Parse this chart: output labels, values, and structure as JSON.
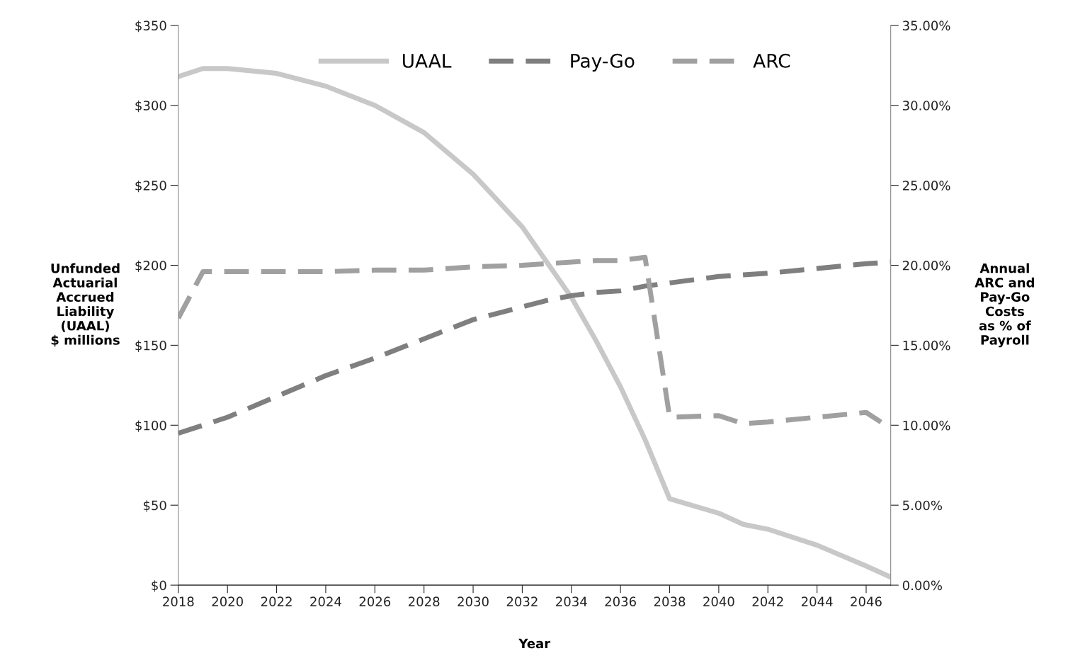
{
  "chart_data": {
    "type": "line",
    "xlabel": "Year",
    "ylabel": "Unfunded\nActuarial\nAccrued\nLiability\n(UAAL)\n$ millions",
    "y2label": "Annual\nARC and\nPay-Go\nCosts\nas % of\nPayroll",
    "x": [
      2018,
      2019,
      2020,
      2022,
      2024,
      2026,
      2028,
      2030,
      2032,
      2033,
      2034,
      2035,
      2036,
      2037,
      2038,
      2040,
      2041,
      2042,
      2044,
      2046,
      2047
    ],
    "series": [
      {
        "name": "UAAL",
        "color": "#c8c8c8",
        "line_style": "solid",
        "values": [
          318,
          323,
          323,
          320,
          312,
          300,
          283,
          257,
          224,
          202,
          180,
          153,
          124,
          91,
          54,
          45,
          38,
          35,
          25,
          12,
          5
        ]
      },
      {
        "name": "Pay-Go",
        "color": "#7f7f7f",
        "line_style": "dashed",
        "axis": "y2",
        "values": [
          9.5,
          10.0,
          10.5,
          11.8,
          13.1,
          14.2,
          15.4,
          16.6,
          17.4,
          17.8,
          18.1,
          18.3,
          18.4,
          18.7,
          18.9,
          19.3,
          19.4,
          19.5,
          19.8,
          20.1,
          20.2
        ]
      },
      {
        "name": "ARC",
        "color": "#a0a0a0",
        "line_style": "dashed",
        "axis": "y2",
        "values": [
          16.7,
          19.6,
          19.6,
          19.6,
          19.6,
          19.7,
          19.7,
          19.9,
          20.0,
          20.1,
          20.2,
          20.3,
          20.3,
          20.5,
          10.5,
          10.6,
          10.1,
          10.2,
          10.5,
          10.8,
          9.8
        ]
      }
    ],
    "xlim": [
      2018,
      2047
    ],
    "xticks": [
      2018,
      2020,
      2022,
      2024,
      2026,
      2028,
      2030,
      2032,
      2034,
      2036,
      2038,
      2040,
      2042,
      2044,
      2046
    ],
    "ylim": [
      0,
      350
    ],
    "yticks": [
      {
        "value": 0,
        "label": "$0"
      },
      {
        "value": 50,
        "label": "$50"
      },
      {
        "value": 100,
        "label": "$100"
      },
      {
        "value": 150,
        "label": "$150"
      },
      {
        "value": 200,
        "label": "$200"
      },
      {
        "value": 250,
        "label": "$250"
      },
      {
        "value": 300,
        "label": "$300"
      },
      {
        "value": 350,
        "label": "$350"
      }
    ],
    "y2lim": [
      0,
      35
    ],
    "y2ticks": [
      {
        "value": 0,
        "label": "0.00%"
      },
      {
        "value": 5,
        "label": "5.00%"
      },
      {
        "value": 10,
        "label": "10.00%"
      },
      {
        "value": 15,
        "label": "15.00%"
      },
      {
        "value": 20,
        "label": "20.00%"
      },
      {
        "value": 25,
        "label": "25.00%"
      },
      {
        "value": 30,
        "label": "30.00%"
      },
      {
        "value": 35,
        "label": "35.00%"
      }
    ],
    "legend": "top",
    "grid": false
  }
}
